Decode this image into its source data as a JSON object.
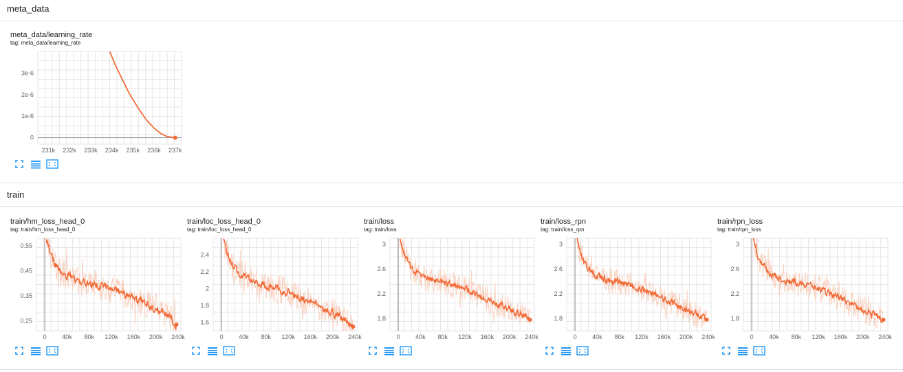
{
  "colors": {
    "line": "#f26b38",
    "line_raw": "#f9c9b4",
    "grid": "#e6e6e6",
    "axis": "#9e9e9e",
    "button": "#2196f3"
  },
  "icons": [
    "expand-icon",
    "data-table-icon",
    "fit-domain-icon"
  ],
  "sections": [
    {
      "name": "meta_data",
      "cards": [
        {
          "title": "meta_data/learning_rate",
          "tag": "tag: meta_data/learning_rate",
          "chart_data": {
            "type": "line",
            "xlabel": "",
            "ylabel": "",
            "xlim": [
              230500,
              237300
            ],
            "ylim": [
              -3e-07,
              4e-06
            ],
            "x_ticks": [
              231000,
              232000,
              233000,
              234000,
              235000,
              236000,
              237000
            ],
            "x_tick_labels": [
              "231k",
              "232k",
              "233k",
              "234k",
              "235k",
              "236k",
              "237k"
            ],
            "y_ticks": [
              0,
              1e-06,
              2e-06,
              3e-06
            ],
            "y_tick_labels": [
              "0",
              "1e-6",
              "2e-6",
              "3e-6"
            ],
            "grid": true,
            "series": [
              {
                "x": [
                  233900,
                  234200,
                  234500,
                  234800,
                  235100,
                  235400,
                  235700,
                  236000,
                  236300,
                  236600,
                  236900,
                  237000
                ],
                "y": [
                  4e-06,
                  3.3e-06,
                  2.7e-06,
                  2.1e-06,
                  1.6e-06,
                  1.15e-06,
                  7.5e-07,
                  4.5e-07,
                  2e-07,
                  6e-08,
                  5e-09,
                  0
                ],
                "smoothed": false
              }
            ]
          }
        }
      ]
    },
    {
      "name": "train",
      "cards": [
        {
          "title": "train/hm_loss_head_0",
          "tag": "tag: train/hm_loss_head_0",
          "chart_data": {
            "type": "line",
            "xlabel": "",
            "ylabel": "",
            "xlim": [
              -15000,
              245000
            ],
            "ylim": [
              0.21,
              0.58
            ],
            "x_ticks": [
              0,
              40000,
              80000,
              120000,
              160000,
              200000,
              240000
            ],
            "x_tick_labels": [
              "0",
              "40k",
              "80k",
              "120k",
              "160k",
              "200k",
              "240k"
            ],
            "y_ticks": [
              0.25,
              0.35,
              0.45,
              0.55
            ],
            "y_tick_labels": [
              "0.25",
              "0.35",
              "0.45",
              "0.55"
            ],
            "grid": true,
            "series": [
              {
                "x": [
                  3000,
                  10000,
                  20000,
                  30000,
                  40000,
                  60000,
                  80000,
                  100000,
                  120000,
                  140000,
                  160000,
                  180000,
                  200000,
                  220000,
                  237000
                ],
                "y": [
                  0.58,
                  0.52,
                  0.47,
                  0.44,
                  0.43,
                  0.41,
                  0.4,
                  0.39,
                  0.375,
                  0.36,
                  0.34,
                  0.32,
                  0.3,
                  0.275,
                  0.235
                ],
                "noise": 0.025,
                "raw_noise": 0.06
              }
            ]
          }
        },
        {
          "title": "train/loc_loss_head_0",
          "tag": "tag: train/loc_loss_head_0",
          "chart_data": {
            "type": "line",
            "xlabel": "",
            "ylabel": "",
            "xlim": [
              -15000,
              245000
            ],
            "ylim": [
              1.5,
              2.6
            ],
            "x_ticks": [
              0,
              40000,
              80000,
              120000,
              160000,
              200000,
              240000
            ],
            "x_tick_labels": [
              "0",
              "40k",
              "80k",
              "120k",
              "160k",
              "200k",
              "240k"
            ],
            "y_ticks": [
              1.6,
              1.8,
              2.0,
              2.2,
              2.4
            ],
            "y_tick_labels": [
              "1.6",
              "1.8",
              "2",
              "2.2",
              "2.4"
            ],
            "grid": true,
            "series": [
              {
                "x": [
                  3000,
                  10000,
                  20000,
                  30000,
                  40000,
                  60000,
                  80000,
                  100000,
                  120000,
                  140000,
                  160000,
                  180000,
                  200000,
                  220000,
                  237000
                ],
                "y": [
                  2.6,
                  2.42,
                  2.28,
                  2.2,
                  2.14,
                  2.08,
                  2.04,
                  2.0,
                  1.96,
                  1.9,
                  1.84,
                  1.78,
                  1.72,
                  1.64,
                  1.55
                ],
                "noise": 0.07,
                "raw_noise": 0.17
              }
            ]
          }
        },
        {
          "title": "train/loss",
          "tag": "tag: train/loss",
          "chart_data": {
            "type": "line",
            "xlabel": "",
            "ylabel": "",
            "xlim": [
              -15000,
              245000
            ],
            "ylim": [
              1.6,
              3.1
            ],
            "x_ticks": [
              0,
              40000,
              80000,
              120000,
              160000,
              200000,
              240000
            ],
            "x_tick_labels": [
              "0",
              "40k",
              "80k",
              "120k",
              "160k",
              "200k",
              "240k"
            ],
            "y_ticks": [
              1.8,
              2.2,
              2.6,
              3.0
            ],
            "y_tick_labels": [
              "1.8",
              "2.2",
              "2.6",
              "3"
            ],
            "grid": true,
            "series": [
              {
                "x": [
                  3000,
                  10000,
                  20000,
                  30000,
                  40000,
                  60000,
                  80000,
                  100000,
                  120000,
                  140000,
                  160000,
                  180000,
                  200000,
                  220000,
                  237000
                ],
                "y": [
                  3.1,
                  2.85,
                  2.65,
                  2.55,
                  2.48,
                  2.42,
                  2.38,
                  2.33,
                  2.28,
                  2.2,
                  2.12,
                  2.03,
                  1.95,
                  1.87,
                  1.78
                ],
                "noise": 0.09,
                "raw_noise": 0.22
              }
            ]
          }
        },
        {
          "title": "train/loss_rpn",
          "tag": "tag: train/loss_rpn",
          "chart_data": {
            "type": "line",
            "xlabel": "",
            "ylabel": "",
            "xlim": [
              -15000,
              245000
            ],
            "ylim": [
              1.6,
              3.1
            ],
            "x_ticks": [
              0,
              40000,
              80000,
              120000,
              160000,
              200000,
              240000
            ],
            "x_tick_labels": [
              "0",
              "40k",
              "80k",
              "120k",
              "160k",
              "200k",
              "240k"
            ],
            "y_ticks": [
              1.8,
              2.2,
              2.6,
              3.0
            ],
            "y_tick_labels": [
              "1.8",
              "2.2",
              "2.6",
              "3"
            ],
            "grid": true,
            "series": [
              {
                "x": [
                  3000,
                  10000,
                  20000,
                  30000,
                  40000,
                  60000,
                  80000,
                  100000,
                  120000,
                  140000,
                  160000,
                  180000,
                  200000,
                  220000,
                  237000
                ],
                "y": [
                  3.1,
                  2.85,
                  2.65,
                  2.55,
                  2.48,
                  2.42,
                  2.38,
                  2.33,
                  2.28,
                  2.2,
                  2.12,
                  2.03,
                  1.95,
                  1.87,
                  1.78
                ],
                "noise": 0.09,
                "raw_noise": 0.22
              }
            ]
          }
        },
        {
          "title": "train/rpn_loss",
          "tag": "tag: train/rpn_loss",
          "chart_data": {
            "type": "line",
            "xlabel": "",
            "ylabel": "",
            "xlim": [
              -15000,
              245000
            ],
            "ylim": [
              1.6,
              3.1
            ],
            "x_ticks": [
              0,
              40000,
              80000,
              120000,
              160000,
              200000,
              240000
            ],
            "x_tick_labels": [
              "0",
              "40k",
              "80k",
              "120k",
              "160k",
              "200k",
              "240k"
            ],
            "y_ticks": [
              1.8,
              2.2,
              2.6,
              3.0
            ],
            "y_tick_labels": [
              "1.8",
              "2.2",
              "2.6",
              "3"
            ],
            "grid": true,
            "series": [
              {
                "x": [
                  3000,
                  10000,
                  20000,
                  30000,
                  40000,
                  60000,
                  80000,
                  100000,
                  120000,
                  140000,
                  160000,
                  180000,
                  200000,
                  220000,
                  237000
                ],
                "y": [
                  3.1,
                  2.85,
                  2.65,
                  2.55,
                  2.48,
                  2.42,
                  2.38,
                  2.33,
                  2.28,
                  2.2,
                  2.12,
                  2.03,
                  1.95,
                  1.87,
                  1.78
                ],
                "noise": 0.09,
                "raw_noise": 0.22
              }
            ]
          }
        }
      ]
    }
  ]
}
